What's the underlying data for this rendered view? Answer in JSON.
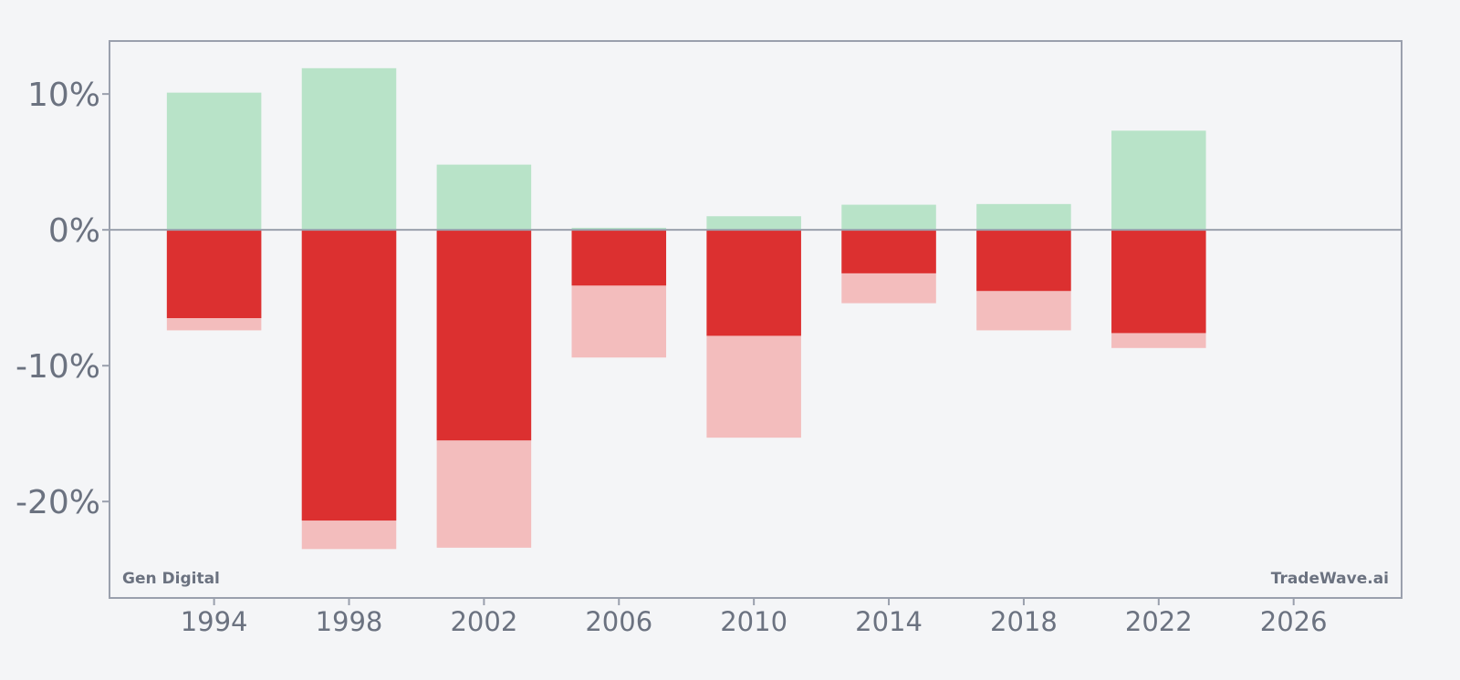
{
  "chart_data": {
    "type": "bar",
    "x": [
      1994,
      1998,
      2002,
      2006,
      2010,
      2014,
      2018,
      2022
    ],
    "series": [
      {
        "values_max_gain": [
          10.1,
          11.9,
          4.8,
          0.15,
          1.0,
          1.85,
          1.9,
          7.3
        ]
      },
      {
        "values_close": [
          -6.5,
          -21.4,
          -15.5,
          -4.1,
          -7.8,
          -3.2,
          -4.5,
          -7.6
        ]
      },
      {
        "values_max_drawdown": [
          -7.4,
          -23.5,
          -23.4,
          -9.4,
          -15.3,
          -5.4,
          -7.4,
          -8.7
        ]
      }
    ],
    "colors": {
      "gain": "#b8e3c8",
      "close_loss": "#dc3030",
      "drawdown": "#f3bdbd",
      "zero_line": "#9aa0ad",
      "frame": "#9aa0ad",
      "text": "#6b7280",
      "background": "#f4f5f7"
    },
    "y_ticks": [
      {
        "value": 10,
        "label": "10%"
      },
      {
        "value": 0,
        "label": "0%"
      },
      {
        "value": -10,
        "label": "-10%"
      },
      {
        "value": -20,
        "label": "-20%"
      }
    ],
    "x_ticks": [
      {
        "value": 1994,
        "label": "1994"
      },
      {
        "value": 1998,
        "label": "1998"
      },
      {
        "value": 2002,
        "label": "2002"
      },
      {
        "value": 2006,
        "label": "2006"
      },
      {
        "value": 2010,
        "label": "2010"
      },
      {
        "value": 2014,
        "label": "2014"
      },
      {
        "value": 2018,
        "label": "2018"
      },
      {
        "value": 2022,
        "label": "2022"
      },
      {
        "value": 2026,
        "label": "2026"
      }
    ],
    "xlim": [
      1990.9,
      2029.2
    ],
    "ylim": [
      -27.1,
      13.9
    ],
    "bar_width_years": 2.8,
    "grid": false,
    "watermark_left": "Gen Digital",
    "watermark_right": "TradeWave.ai"
  }
}
